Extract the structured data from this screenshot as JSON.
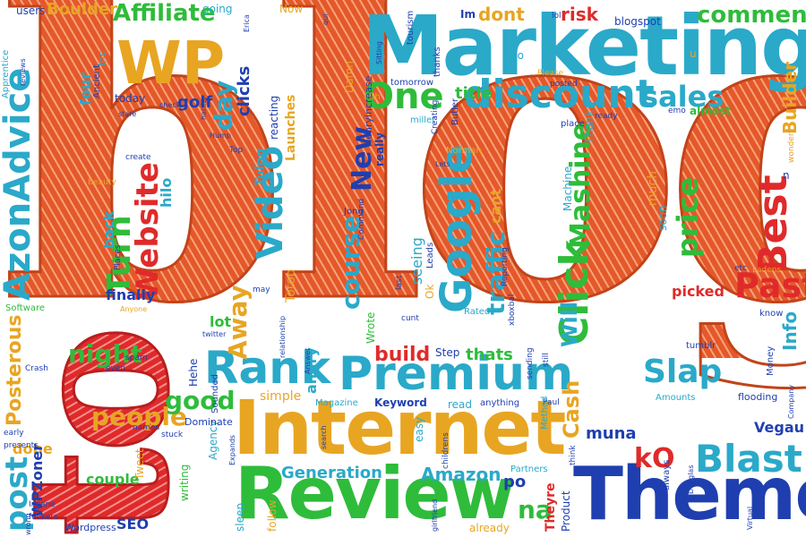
{
  "words": {
    "blog": "blog",
    "to": "to",
    "marketing": "Marketing",
    "internet": "Internet",
    "review": "Review",
    "theme": "Theme",
    "wp": "WP",
    "premium": "Premium",
    "discount": "discount",
    "rank": "Rank",
    "google": "Google",
    "click": "Click",
    "video": "Video",
    "website": "Website",
    "turn": "Turn",
    "azonadvice": "AzonAdvice",
    "affiliate": "Affiliate",
    "boulder": "Boulder",
    "comment": "comment",
    "builder": "Builder",
    "sales": "sales",
    "best": "Best",
    "past": "Past",
    "blast": "Blast",
    "slap": "Slap",
    "price": "price",
    "one": "One",
    "new": "New",
    "mashine": "Mashine",
    "traffic": "traffic",
    "course": "course",
    "build": "build",
    "cash": "Cash",
    "will": "Will",
    "away": "Away",
    "people": "people",
    "night": "night",
    "good": "good",
    "post": "post",
    "posterous": "Posterous",
    "done": "done",
    "wpzoner": "WPZoner",
    "seo": "SEO",
    "amazon": "Amazon",
    "generation": "Generation",
    "keyword": "Keyword",
    "magazine": "Magazine",
    "angry": "angry",
    "thats": "thats",
    "muna": "muna",
    "vegau": "Vegau",
    "info": "Info",
    "ko": "kO",
    "na": "na",
    "po": "po",
    "picked": "picked",
    "tumblr": "tumblr",
    "dont": "dont",
    "risk": "risk",
    "blogspot": "blogspot",
    "almost": "almost",
    "title": "title",
    "golf": "golf",
    "day": "day",
    "clicks": "clicks",
    "damn": "Damn",
    "launches": "Launches",
    "today": "today",
    "four": "four",
    "inc": "Inc",
    "users": "users",
    "now": "Now",
    "going": "going",
    "ancient": "Ancient",
    "apprentice": "Apprentice",
    "software": "Software",
    "finally": "finally",
    "back": "back",
    "hilo": "hilo",
    "tulog": "Tulog",
    "totoo": "Totoo",
    "reacting": "reacting",
    "lot": "lot",
    "hehe": "Hehe",
    "simple": "simple",
    "couple": "couple",
    "writing": "writing",
    "tweet": "Tweet",
    "wordpress": "Wordpress",
    "sleep": "sleep",
    "follow": "follow",
    "agency": "Agency",
    "dominate": "Dominate",
    "sounded": "Sounded",
    "already": "already",
    "theyre": "Theyre",
    "product": "Product",
    "partners": "Partners",
    "easy": "easy",
    "read": "read",
    "anything": "anything",
    "wrote": "Wrote",
    "seeing": "seeing",
    "leads": "Leads",
    "rated": "Rated",
    "ok": "Ok",
    "cant": "cant",
    "jong": "Jong",
    "norman": "Norman",
    "machine": "Machine",
    "thank": "Thank",
    "place": "place",
    "soon": "soon",
    "much": "much",
    "always": "always",
    "amounts": "Amounts",
    "money": "Money",
    "flooding": "flooding",
    "know": "know",
    "etc": "etc",
    "ladens": "Ladens",
    "wonder": "wonder",
    "emo": "emo",
    "ready": "ready",
    "posted": "posted",
    "please": "Please",
    "go": "go",
    "thanks": "thanks",
    "tourism": "tourism",
    "im": "Im",
    "lol": "lol",
    "ahh": "ahh",
    "tomorrow": "tomorrow",
    "henryincrease": "Henryincrease",
    "millet": "millet",
    "butler": "Butler",
    "creating": "Creating",
    "really": "really",
    "step": "Step",
    "sending": "sending",
    "still": "still",
    "paul": "Paul",
    "method": "Method",
    "children": "childrens",
    "xbox": "xboxbal",
    "cunt": "cunt",
    "last": "last",
    "reporting": "Reporting",
    "command": "Command",
    "lets": "Lets",
    "create": "create",
    "beauty": "Beauty",
    "places": "Places",
    "stuck": "stuck",
    "spam": "spam",
    "even": "even",
    "crash": "Crash",
    "early": "early",
    "presents": "presents",
    "names": "names",
    "insane": "Insane",
    "fuckers": "fuckers",
    "wrong": "wrong",
    "top": "Top",
    "hump": "Hump",
    "check": "check",
    "stare": "stare",
    "harder": "harder",
    "reviews": "reviews",
    "sitting": "Sitting",
    "erica": "Erica",
    "may": "may",
    "anyone": "Anyone",
    "twitter": "twitter",
    "relationship": "relationship",
    "mission": "Mission",
    "answer": "Answer",
    "search": "search",
    "expands": "Expands",
    "girlfriend": "girlfriend",
    "douglas": "Douglas",
    "virtual": "Virtual",
    "company": "Company",
    "u": "u",
    "n": "n",
    "think": "think",
    "qui": "qui"
  }
}
